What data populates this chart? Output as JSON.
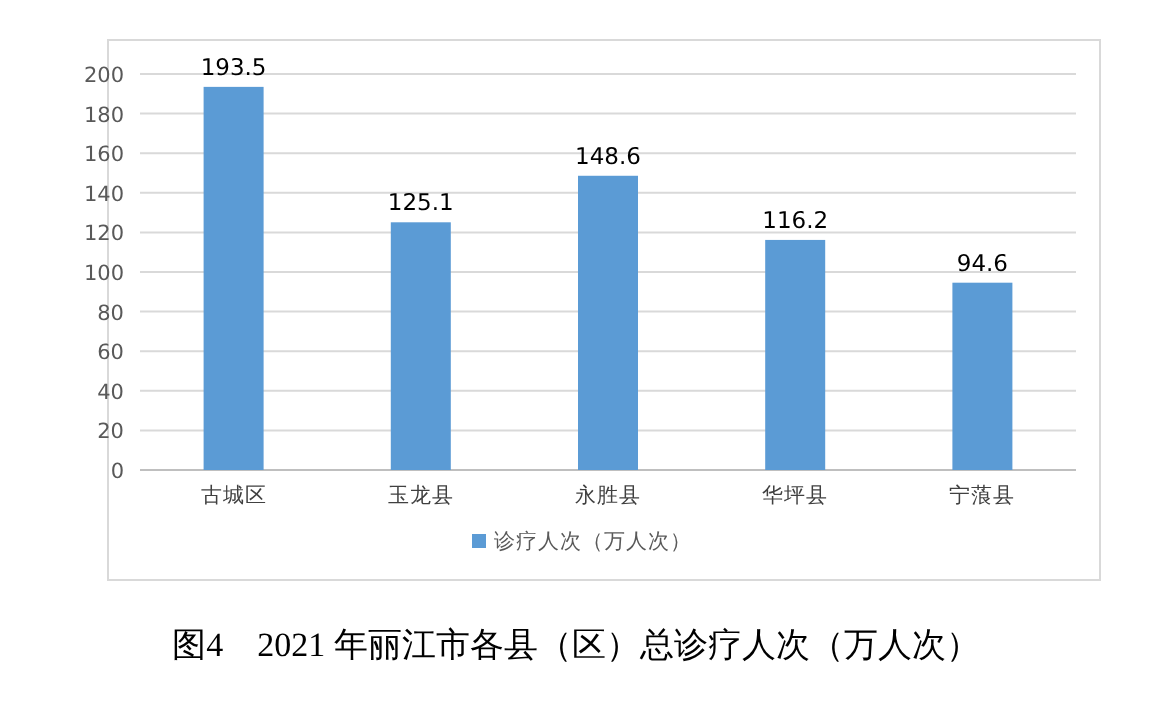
{
  "chart_data": {
    "type": "bar",
    "title": "图4　2021 年丽江市各县（区）总诊疗人次（万人次）",
    "categories": [
      "古城区",
      "玉龙县",
      "永胜县",
      "华坪县",
      "宁蒗县"
    ],
    "series": [
      {
        "name": "诊疗人次（万人次）",
        "color": "#5b9bd5",
        "values": [
          193.5,
          125.1,
          148.6,
          116.2,
          94.6
        ]
      }
    ],
    "ylim": [
      0,
      200
    ],
    "yticks": [
      0,
      20,
      40,
      60,
      80,
      100,
      120,
      140,
      160,
      180,
      200
    ],
    "grid": "y",
    "legend": "bottom",
    "data_labels": true
  }
}
